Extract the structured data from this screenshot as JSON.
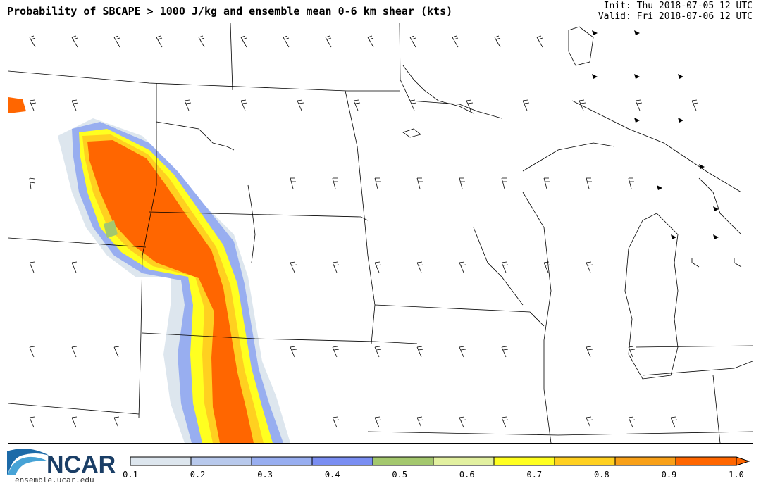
{
  "title": "Probability of SBCAPE > 1000 J/kg and ensemble mean 0-6 km shear (kts)",
  "init_text": "Init: Thu 2018-07-05 12 UTC",
  "valid_text": "Valid: Fri 2018-07-06 12 UTC",
  "logo": {
    "name": "NCAR",
    "url": "ensemble.ucar.edu"
  },
  "colorbar": {
    "labels": [
      "0.1",
      "0.2",
      "0.3",
      "0.4",
      "0.5",
      "0.6",
      "0.7",
      "0.8",
      "0.9",
      "1.0"
    ],
    "colors": [
      "#dde6ee",
      "#b8c9ec",
      "#98aef0",
      "#7a8ef2",
      "#a4c86e",
      "#e2f0a0",
      "#ffff20",
      "#ffd020",
      "#f8a018",
      "#ff6600"
    ]
  }
}
